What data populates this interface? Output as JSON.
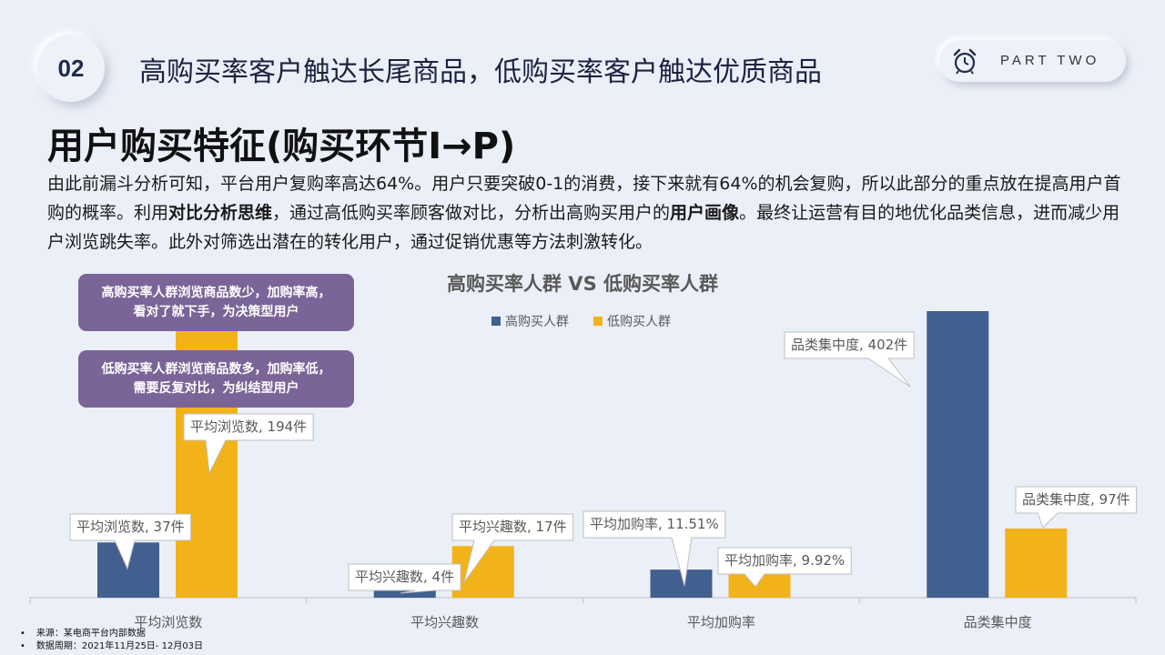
{
  "header": {
    "section_number": "02",
    "title": "高购买率客户触达长尾商品，低购买率客户触达优质商品",
    "part_label": "PART TWO",
    "clock_icon": "alarm-clock-icon"
  },
  "main_title": "用户购买特征(购买环节I→P)",
  "intro": {
    "t1": "由此前漏斗分析可知，平台用户复购率高达64%。用户只要突破0-1的消费，接下来就有64%的机会复购，所以此部分的重点放在提高用户首购的概率。利用",
    "b1": "对比分析思维",
    "t2": "，通过高低购买率顾客做对比，分析出高购买用户的",
    "b2": "用户画像",
    "t3": "。最终让运营有目的地优化品类信息，进而减少用户浏览跳失率。此外对筛选出潜在的转化用户，通过促销优惠等方法刺激转化。"
  },
  "callouts": {
    "high": {
      "line1": "高购买率人群浏览商品数少，加购率高，",
      "line2": "看对了就下手，为决策型用户"
    },
    "low": {
      "line1": "低购买率人群浏览商品数多，加购率低，",
      "line2": "需要反复对比，为纠结型用户"
    }
  },
  "chart_data": {
    "type": "bar",
    "title": "高购买率人群 VS 低购买率人群",
    "categories": [
      "平均浏览数",
      "平均兴趣数",
      "平均加购率",
      "品类集中度"
    ],
    "series": [
      {
        "name": "高购买人群",
        "color": "#41608f",
        "values": [
          37,
          4,
          11.51,
          402
        ]
      },
      {
        "name": "低购买人群",
        "color": "#f2b31a",
        "values": [
          194,
          17,
          9.92,
          97
        ]
      }
    ],
    "data_labels": [
      [
        "平均浏览数, 37件",
        "平均兴趣数, 4件",
        "平均加购率, 11.51%",
        "品类集中度, 402件"
      ],
      [
        "平均浏览数, 194件",
        "平均兴趣数, 17件",
        "平均加购率, 9.92%",
        "品类集中度, 97件"
      ]
    ],
    "legend_position": "top-center",
    "grid": false,
    "y_axis_shown": false
  },
  "footnotes": {
    "source": "来源：某电商平台内部数据",
    "period": "数据周期：2021年11月25日- 12月03日"
  }
}
